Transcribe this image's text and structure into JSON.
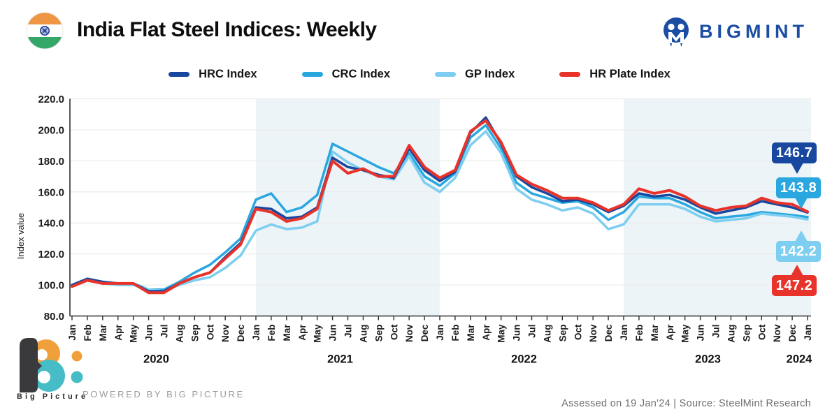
{
  "header": {
    "title": "India Flat Steel Indices: Weekly",
    "flag_icon": "india-flag",
    "brand": "BIGMINT"
  },
  "chart_data": {
    "type": "line",
    "title": "India Flat Steel Indices: Weekly",
    "ylabel": "Index value",
    "ylim": [
      80,
      220
    ],
    "ytick_step": 20,
    "ytick_labels": [
      "80.0",
      "100.0",
      "120.0",
      "140.0",
      "160.0",
      "180.0",
      "200.0",
      "220.0"
    ],
    "grid": "horizontal",
    "legend_position": "top",
    "x_months": [
      "Jan",
      "Feb",
      "Mar",
      "Apr",
      "May",
      "Jun",
      "Jul",
      "Aug",
      "Sep",
      "Oct",
      "Nov",
      "Dec",
      "Jan",
      "Feb",
      "Mar",
      "Apr",
      "May",
      "Jun",
      "Jul",
      "Aug",
      "Sep",
      "Oct",
      "Nov",
      "Dec",
      "Jan",
      "Feb",
      "Mar",
      "Apr",
      "May",
      "Jun",
      "Jul",
      "Aug",
      "Sep",
      "Oct",
      "Nov",
      "Dec",
      "Jan",
      "Feb",
      "Mar",
      "Apr",
      "May",
      "Jun",
      "Jul",
      "Aug",
      "Sep",
      "Oct",
      "Nov",
      "Dec",
      "Jan"
    ],
    "years": [
      {
        "label": "2020",
        "from_month": 0,
        "to_month": 11
      },
      {
        "label": "2021",
        "from_month": 12,
        "to_month": 23
      },
      {
        "label": "2022",
        "from_month": 24,
        "to_month": 35
      },
      {
        "label": "2023",
        "from_month": 36,
        "to_month": 47
      },
      {
        "label": "2024",
        "from_month": 48,
        "to_month": 48
      }
    ],
    "shaded_bands": [
      {
        "from_month": 12,
        "to_month": 24
      },
      {
        "from_month": 36,
        "to_month": 49
      }
    ],
    "band_color": "#edf4f8",
    "grid_color": "#e9ebec",
    "axis_color": "#2f2f2f",
    "series": [
      {
        "name": "HRC Index",
        "color": "#17479E",
        "end_label": "146.7",
        "values": [
          100,
          104,
          102,
          101,
          101,
          96,
          96,
          101,
          105,
          108,
          118,
          127,
          150,
          149,
          143,
          144,
          150,
          182,
          176,
          174,
          171,
          169,
          188,
          174,
          167,
          173,
          198,
          208,
          191,
          170,
          163,
          159,
          154,
          155,
          152,
          147,
          151,
          159,
          157,
          158,
          155,
          150,
          146,
          148,
          150,
          154,
          152,
          150,
          146.7
        ]
      },
      {
        "name": "CRC Index",
        "color": "#2AA7DF",
        "end_label": "143.8",
        "values": [
          100,
          104,
          102,
          101,
          101,
          97,
          97,
          102,
          108,
          113,
          121,
          130,
          155,
          159,
          147,
          150,
          158,
          191,
          186,
          181,
          176,
          172,
          185,
          170,
          164,
          172,
          195,
          203,
          188,
          166,
          159,
          156,
          153,
          154,
          150,
          142,
          147,
          157,
          156,
          156,
          152,
          147,
          143,
          144,
          145,
          147,
          146,
          145,
          143.8
        ]
      },
      {
        "name": "GP Index",
        "color": "#7DCEF0",
        "end_label": "142.2",
        "values": [
          100,
          103,
          101,
          100,
          100,
          97,
          96,
          100,
          103,
          105,
          111,
          119,
          135,
          139,
          136,
          137,
          141,
          186,
          179,
          174,
          170,
          168,
          183,
          166,
          160,
          169,
          190,
          199,
          185,
          162,
          155,
          152,
          148,
          150,
          146,
          136,
          139,
          152,
          152,
          152,
          149,
          144,
          141,
          142,
          143,
          146,
          145,
          144,
          142.2
        ]
      },
      {
        "name": "HR Plate Index",
        "color": "#E8332A",
        "end_label": "147.2",
        "values": [
          99,
          103,
          101,
          101,
          101,
          95,
          95,
          101,
          105,
          108,
          117,
          126,
          149,
          147,
          141,
          143,
          149,
          180,
          172,
          175,
          170,
          170,
          190,
          176,
          169,
          174,
          199,
          206,
          192,
          171,
          165,
          161,
          156,
          156,
          153,
          148,
          152,
          162,
          159,
          161,
          157,
          151,
          148,
          150,
          151,
          156,
          153,
          152,
          147.2
        ]
      }
    ]
  },
  "footer": {
    "logo_text": "Big  Picture",
    "powered_by": "POWERED BY BIG PICTURE",
    "assessed": "Assessed on 19 Jan'24  |  Source: SteelMint Research"
  }
}
